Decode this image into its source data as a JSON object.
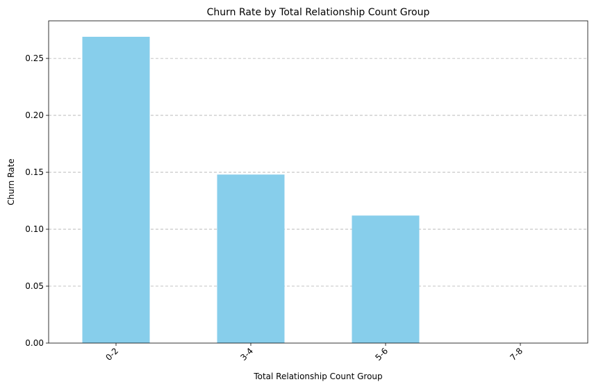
{
  "chart_data": {
    "type": "bar",
    "title": "Churn Rate by Total Relationship Count Group",
    "xlabel": "Total Relationship Count Group",
    "ylabel": "Churn Rate",
    "categories": [
      "0-2",
      "3-4",
      "5-6",
      "7-8"
    ],
    "values": [
      0.269,
      0.148,
      0.112,
      0.0
    ],
    "ylim": [
      0,
      0.283
    ],
    "yticks": [
      0.0,
      0.05,
      0.1,
      0.15,
      0.2,
      0.25
    ],
    "ytick_labels": [
      "0.00",
      "0.05",
      "0.10",
      "0.15",
      "0.20",
      "0.25"
    ],
    "grid": "y-dashed",
    "legend": "none",
    "xtick_rotation_deg": 45,
    "bar_color": "#87CEEB"
  }
}
